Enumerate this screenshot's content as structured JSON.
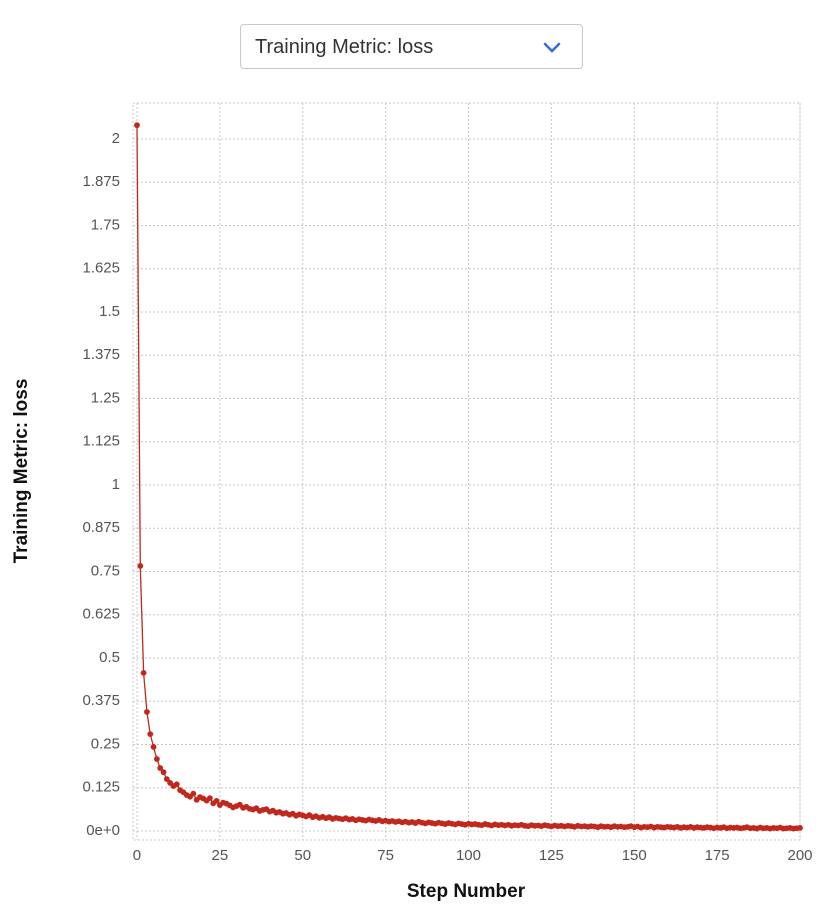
{
  "dropdown_label": "Training Metric: loss",
  "chart_data": {
    "type": "line",
    "xlabel": "Step Number",
    "ylabel": "Training Metric: loss",
    "color": "#c0281e",
    "markers": true,
    "grid": true,
    "xlim": [
      -1.2,
      200
    ],
    "ylim": [
      -0.026,
      2.104
    ],
    "xticks": [
      0,
      25,
      50,
      75,
      100,
      125,
      150,
      175,
      200
    ],
    "yticks": [
      {
        "value": 0,
        "label": "0e+0"
      },
      0.125,
      0.25,
      0.375,
      0.5,
      0.625,
      0.75,
      0.875,
      1,
      1.125,
      1.25,
      1.375,
      1.5,
      1.625,
      1.75,
      1.875,
      2
    ],
    "x": [
      0,
      1,
      2,
      3,
      4,
      5,
      6,
      7,
      8,
      9,
      10,
      11,
      12,
      13,
      14,
      15,
      16,
      17,
      18,
      19,
      20,
      21,
      22,
      23,
      24,
      25,
      26,
      27,
      28,
      29,
      30,
      31,
      32,
      33,
      34,
      35,
      36,
      37,
      38,
      39,
      40,
      41,
      42,
      43,
      44,
      45,
      46,
      47,
      48,
      49,
      50,
      51,
      52,
      53,
      54,
      55,
      56,
      57,
      58,
      59,
      60,
      61,
      62,
      63,
      64,
      65,
      66,
      67,
      68,
      69,
      70,
      71,
      72,
      73,
      74,
      75,
      76,
      77,
      78,
      79,
      80,
      81,
      82,
      83,
      84,
      85,
      86,
      87,
      88,
      89,
      90,
      91,
      92,
      93,
      94,
      95,
      96,
      97,
      98,
      99,
      100,
      101,
      102,
      103,
      104,
      105,
      106,
      107,
      108,
      109,
      110,
      111,
      112,
      113,
      114,
      115,
      116,
      117,
      118,
      119,
      120,
      121,
      122,
      123,
      124,
      125,
      126,
      127,
      128,
      129,
      130,
      131,
      132,
      133,
      134,
      135,
      136,
      137,
      138,
      139,
      140,
      141,
      142,
      143,
      144,
      145,
      146,
      147,
      148,
      149,
      150,
      151,
      152,
      153,
      154,
      155,
      156,
      157,
      158,
      159,
      160,
      161,
      162,
      163,
      164,
      165,
      166,
      167,
      168,
      169,
      170,
      171,
      172,
      173,
      174,
      175,
      176,
      177,
      178,
      179,
      180,
      181,
      182,
      183,
      184,
      185,
      186,
      187,
      188,
      189,
      190,
      191,
      192,
      193,
      194,
      195,
      196,
      197,
      198,
      199,
      200
    ],
    "values": [
      2.04,
      0.766,
      0.457,
      0.344,
      0.28,
      0.243,
      0.208,
      0.182,
      0.17,
      0.15,
      0.139,
      0.13,
      0.135,
      0.118,
      0.112,
      0.104,
      0.099,
      0.108,
      0.09,
      0.098,
      0.094,
      0.088,
      0.095,
      0.08,
      0.087,
      0.075,
      0.082,
      0.079,
      0.074,
      0.068,
      0.072,
      0.076,
      0.067,
      0.07,
      0.064,
      0.062,
      0.066,
      0.058,
      0.061,
      0.063,
      0.056,
      0.059,
      0.053,
      0.055,
      0.05,
      0.052,
      0.047,
      0.05,
      0.044,
      0.048,
      0.045,
      0.042,
      0.046,
      0.04,
      0.043,
      0.038,
      0.041,
      0.037,
      0.04,
      0.035,
      0.038,
      0.036,
      0.034,
      0.037,
      0.033,
      0.035,
      0.031,
      0.034,
      0.032,
      0.03,
      0.033,
      0.031,
      0.029,
      0.032,
      0.028,
      0.03,
      0.027,
      0.029,
      0.026,
      0.028,
      0.025,
      0.027,
      0.024,
      0.026,
      0.023,
      0.027,
      0.024,
      0.022,
      0.025,
      0.023,
      0.021,
      0.024,
      0.022,
      0.02,
      0.023,
      0.021,
      0.019,
      0.022,
      0.02,
      0.018,
      0.021,
      0.019,
      0.02,
      0.018,
      0.017,
      0.02,
      0.018,
      0.016,
      0.019,
      0.017,
      0.018,
      0.016,
      0.018,
      0.015,
      0.017,
      0.016,
      0.018,
      0.015,
      0.014,
      0.017,
      0.015,
      0.016,
      0.014,
      0.017,
      0.015,
      0.013,
      0.016,
      0.014,
      0.015,
      0.013,
      0.015,
      0.014,
      0.012,
      0.015,
      0.013,
      0.014,
      0.012,
      0.014,
      0.013,
      0.011,
      0.014,
      0.012,
      0.013,
      0.011,
      0.014,
      0.012,
      0.013,
      0.011,
      0.012,
      0.014,
      0.011,
      0.013,
      0.01,
      0.012,
      0.011,
      0.013,
      0.01,
      0.012,
      0.011,
      0.01,
      0.012,
      0.011,
      0.01,
      0.012,
      0.009,
      0.011,
      0.01,
      0.012,
      0.009,
      0.011,
      0.01,
      0.009,
      0.011,
      0.01,
      0.008,
      0.01,
      0.009,
      0.011,
      0.008,
      0.01,
      0.009,
      0.01,
      0.008,
      0.009,
      0.011,
      0.008,
      0.009,
      0.007,
      0.01,
      0.008,
      0.009,
      0.007,
      0.009,
      0.008,
      0.01,
      0.007,
      0.008,
      0.009,
      0.007,
      0.008,
      0.009
    ]
  }
}
